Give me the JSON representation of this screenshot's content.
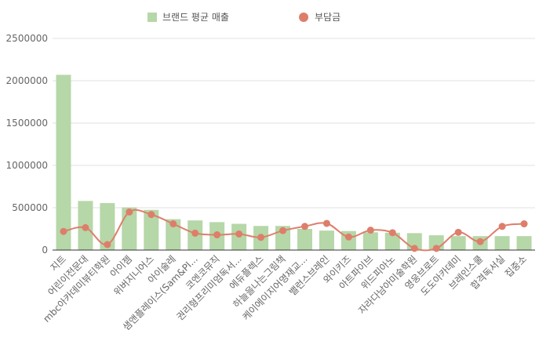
{
  "chart_data": {
    "type": "bar",
    "legend_position": "top",
    "grid": true,
    "ylim": [
      0,
      2500000
    ],
    "yticks": [
      0,
      500000,
      1000000,
      1500000,
      2000000,
      2500000
    ],
    "ytick_labels": [
      "0",
      "500000",
      "1000000",
      "1500000",
      "2000000",
      "2500000"
    ],
    "categories": [
      "지트",
      "어린이전문대",
      "mbc아카데미뷰티학원",
      "아이젬",
      "위버지니어스",
      "아이술레",
      "샘앤플레이스(Sam&Pl...",
      "코엔코뮤직",
      "권리형프리미엄독서...",
      "에듀플렉스",
      "하늘을나는그림책",
      "케이에이지어영재교...",
      "밸런스브레인",
      "와이키즈",
      "아트파이브",
      "위드피아노",
      "자라다남아미술학원",
      "영웅브로트",
      "도도아카데미",
      "브레인스쿨",
      "합격독서실",
      "집중소"
    ],
    "series": [
      {
        "name": "브랜드 평균 매출",
        "kind": "bar",
        "color": "#b6d7a8",
        "values": [
          2070000,
          580000,
          555000,
          505000,
          475000,
          365000,
          350000,
          330000,
          310000,
          285000,
          285000,
          250000,
          230000,
          225000,
          210000,
          205000,
          200000,
          175000,
          165000,
          165000,
          165000,
          165000
        ]
      },
      {
        "name": "부담금",
        "kind": "line",
        "color": "#dd7e6b",
        "values": [
          220000,
          265000,
          65000,
          450000,
          420000,
          310000,
          200000,
          180000,
          190000,
          150000,
          230000,
          280000,
          315000,
          155000,
          235000,
          205000,
          20000,
          20000,
          210000,
          100000,
          280000,
          310000
        ]
      }
    ]
  }
}
